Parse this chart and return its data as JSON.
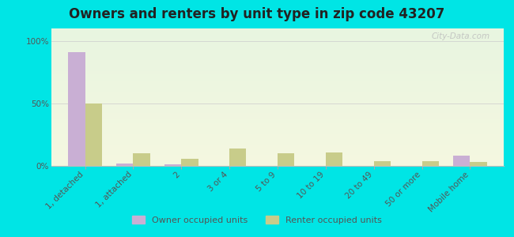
{
  "title": "Owners and renters by unit type in zip code 43207",
  "categories": [
    "1, detached",
    "1, attached",
    "2",
    "3 or 4",
    "5 to 9",
    "10 to 19",
    "20 to 49",
    "50 or more",
    "Mobile home"
  ],
  "owner_values": [
    91,
    2,
    1,
    0,
    0,
    0,
    0,
    0,
    8
  ],
  "renter_values": [
    50,
    10,
    6,
    14,
    10,
    11,
    4,
    4,
    3
  ],
  "owner_color": "#c9afd4",
  "renter_color": "#c8cc8a",
  "background_color": "#00e5e5",
  "ylabel_ticks": [
    "0%",
    "50%",
    "100%"
  ],
  "ytick_values": [
    0,
    50,
    100
  ],
  "ylim": [
    0,
    110
  ],
  "legend_owner": "Owner occupied units",
  "legend_renter": "Renter occupied units",
  "watermark": "City-Data.com",
  "title_fontsize": 12,
  "tick_fontsize": 7.5
}
